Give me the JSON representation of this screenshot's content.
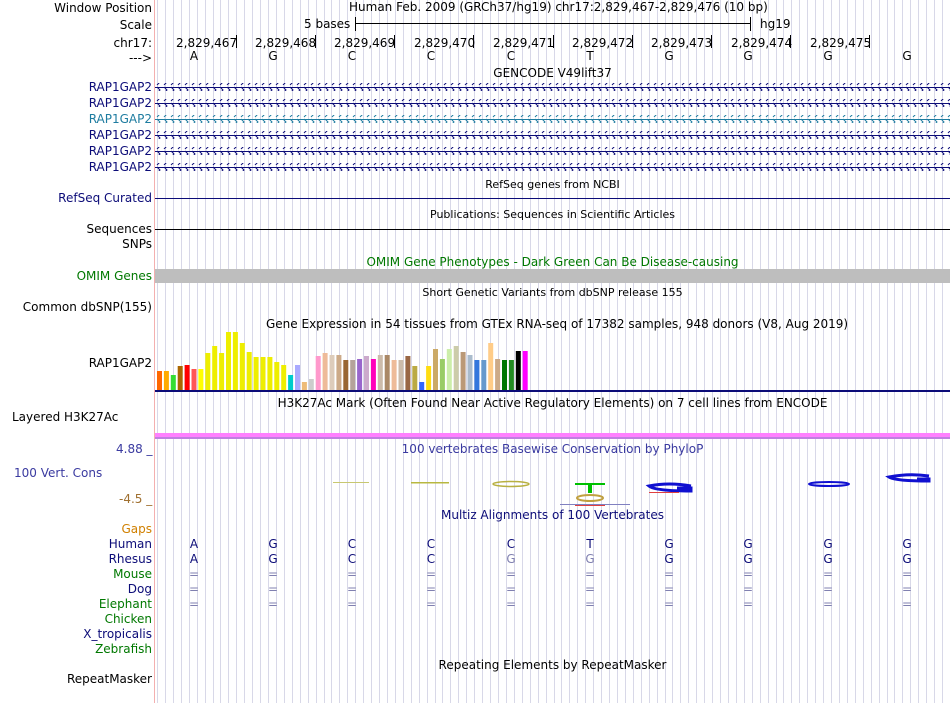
{
  "header": {
    "window_position_label": "Window Position",
    "scale_label": "Scale",
    "chrom_label": "chr17:",
    "strand_label": "--->",
    "assembly_title": "Human Feb. 2009 (GRCh37/hg19)   chr17:2,829,467-2,829,476 (10 bp)",
    "scale_text": "5 bases",
    "scale_db": "hg19",
    "positions": [
      "2,829,467",
      "2,829,468",
      "2,829,469",
      "2,829,470",
      "2,829,471",
      "2,829,472",
      "2,829,473",
      "2,829,474",
      "2,829,475"
    ],
    "bases": [
      "A",
      "G",
      "C",
      "C",
      "C",
      "T",
      "G",
      "G",
      "G",
      "G"
    ]
  },
  "gencode": {
    "title": "GENCODE V49lift37",
    "genes": [
      "RAP1GAP2",
      "RAP1GAP2",
      "RAP1GAP2",
      "RAP1GAP2",
      "RAP1GAP2",
      "RAP1GAP2"
    ],
    "colors": [
      "#0c0c78",
      "#0c0c78",
      "#1e7ca0",
      "#0c0c78",
      "#0c0c78",
      "#0c0c78"
    ]
  },
  "refseq": {
    "title": "RefSeq genes from NCBI",
    "label": "RefSeq Curated",
    "color": "#0c0c78"
  },
  "publications": {
    "title": "Publications: Sequences in Scientific Articles",
    "label1": "Sequences",
    "label2": "SNPs"
  },
  "omim": {
    "title": "OMIM Gene Phenotypes - Dark Green Can Be Disease-causing",
    "label": "OMIM Genes",
    "color": "#007800",
    "bar_color": "#bebebe"
  },
  "dbsnp": {
    "title": "Short Genetic Variants from dbSNP release 155",
    "label": "Common dbSNP(155)"
  },
  "gtex": {
    "title": "Gene Expression in 54 tissues from GTEx RNA-seq of 17382 samples, 948 donors (V8, Aug 2019)",
    "gene_label": "RAP1GAP2",
    "values": [
      0.32,
      0.32,
      0.26,
      0.4,
      0.42,
      0.36,
      0.36,
      0.62,
      0.74,
      0.62,
      0.98,
      0.98,
      0.8,
      0.64,
      0.56,
      0.56,
      0.56,
      0.48,
      0.42,
      0.26,
      0.42,
      0.14,
      0.18,
      0.58,
      0.62,
      0.6,
      0.6,
      0.5,
      0.5,
      0.52,
      0.58,
      0.52,
      0.6,
      0.6,
      0.5,
      0.5,
      0.58,
      0.4,
      0.14,
      0.4,
      0.7,
      0.52,
      0.7,
      0.74,
      0.64,
      0.6,
      0.5,
      0.5,
      0.8,
      0.52,
      0.5,
      0.5,
      0.66,
      0.66
    ],
    "colors": [
      "#FF6600",
      "#FFAA00",
      "#33DD33",
      "#AA6600",
      "#FF0000",
      "#FF5555",
      "#FFFF00",
      "#EEEE00",
      "#EEEE00",
      "#EEEE00",
      "#EEEE00",
      "#EEEE00",
      "#EEEE00",
      "#EEEE00",
      "#EEEE00",
      "#EEEE00",
      "#EEEE00",
      "#EEEE00",
      "#EEEE00",
      "#00CCCC",
      "#AAAAFF",
      "#EEBB77",
      "#CCCCCC",
      "#FF99CC",
      "#EEBB99",
      "#DDCCBB",
      "#CCAA88",
      "#996633",
      "#B5A39A",
      "#9966CC",
      "#CCAACC",
      "#FF00BB",
      "#CCBBAA",
      "#AA8866",
      "#EEBB99",
      "#CCBBAA",
      "#996644",
      "#BBAA44",
      "#3366FF",
      "#FFDD11",
      "#CCAA66",
      "#99CC66",
      "#CCEEAA",
      "#CCCCAA",
      "#BB9977",
      "#AABBCC",
      "#3377DD",
      "#6699CC",
      "#FFCC88",
      "#CCAA88",
      "#007700",
      "#228B22",
      "#000000",
      "#FF00FF"
    ]
  },
  "h3k27ac": {
    "title": "H3K27Ac Mark (Often Found Near Active Regulatory Elements) on 7 cell lines from ENCODE",
    "label": "Layered H3K27Ac",
    "colors": [
      "#ff80ff",
      "#c080e0"
    ]
  },
  "phylop": {
    "title": "100 vertebrates Basewise Conservation by PhyloP",
    "label": "100 Vert. Cons",
    "max_label": "4.88 _",
    "min_label": "-4.5 _",
    "color": "#3a3aa0",
    "label_color": "#a07030"
  },
  "multiz": {
    "title": "Multiz Alignments of 100 Vertebrates",
    "gaps_label": "Gaps",
    "species": [
      {
        "name": "Human",
        "color": "#0c0c78",
        "bases": [
          "A",
          "G",
          "C",
          "C",
          "C",
          "T",
          "G",
          "G",
          "G",
          "G"
        ]
      },
      {
        "name": "Rhesus",
        "color": "#0c0c78",
        "bases": [
          "A",
          "G",
          "C",
          "C",
          "G",
          "G",
          "G",
          "G",
          "G",
          "G"
        ]
      },
      {
        "name": "Mouse",
        "color": "#007800",
        "bases": [
          "=",
          "=",
          "=",
          "=",
          "=",
          "=",
          "=",
          "=",
          "=",
          "="
        ]
      },
      {
        "name": "Dog",
        "color": "#0c0c78",
        "bases": [
          "=",
          "=",
          "=",
          "=",
          "=",
          "=",
          "=",
          "=",
          "=",
          "="
        ]
      },
      {
        "name": "Elephant",
        "color": "#007800",
        "bases": [
          "=",
          "=",
          "=",
          "=",
          "=",
          "=",
          "=",
          "=",
          "=",
          "="
        ]
      },
      {
        "name": "Chicken",
        "color": "#007800",
        "bases": []
      },
      {
        "name": "X_tropicalis",
        "color": "#0c0c78",
        "bases": []
      },
      {
        "name": "Zebrafish",
        "color": "#007800",
        "bases": []
      }
    ]
  },
  "repeatmasker": {
    "title": "Repeating Elements by RepeatMasker",
    "label": "RepeatMasker"
  },
  "colors": {
    "gene_blue": "#0c0c78",
    "teal": "#1e7ca0",
    "omim_green": "#007800",
    "gaps_orange": "#d08000",
    "grid": "#d8d8e8",
    "base_faded": "#8080b0"
  }
}
